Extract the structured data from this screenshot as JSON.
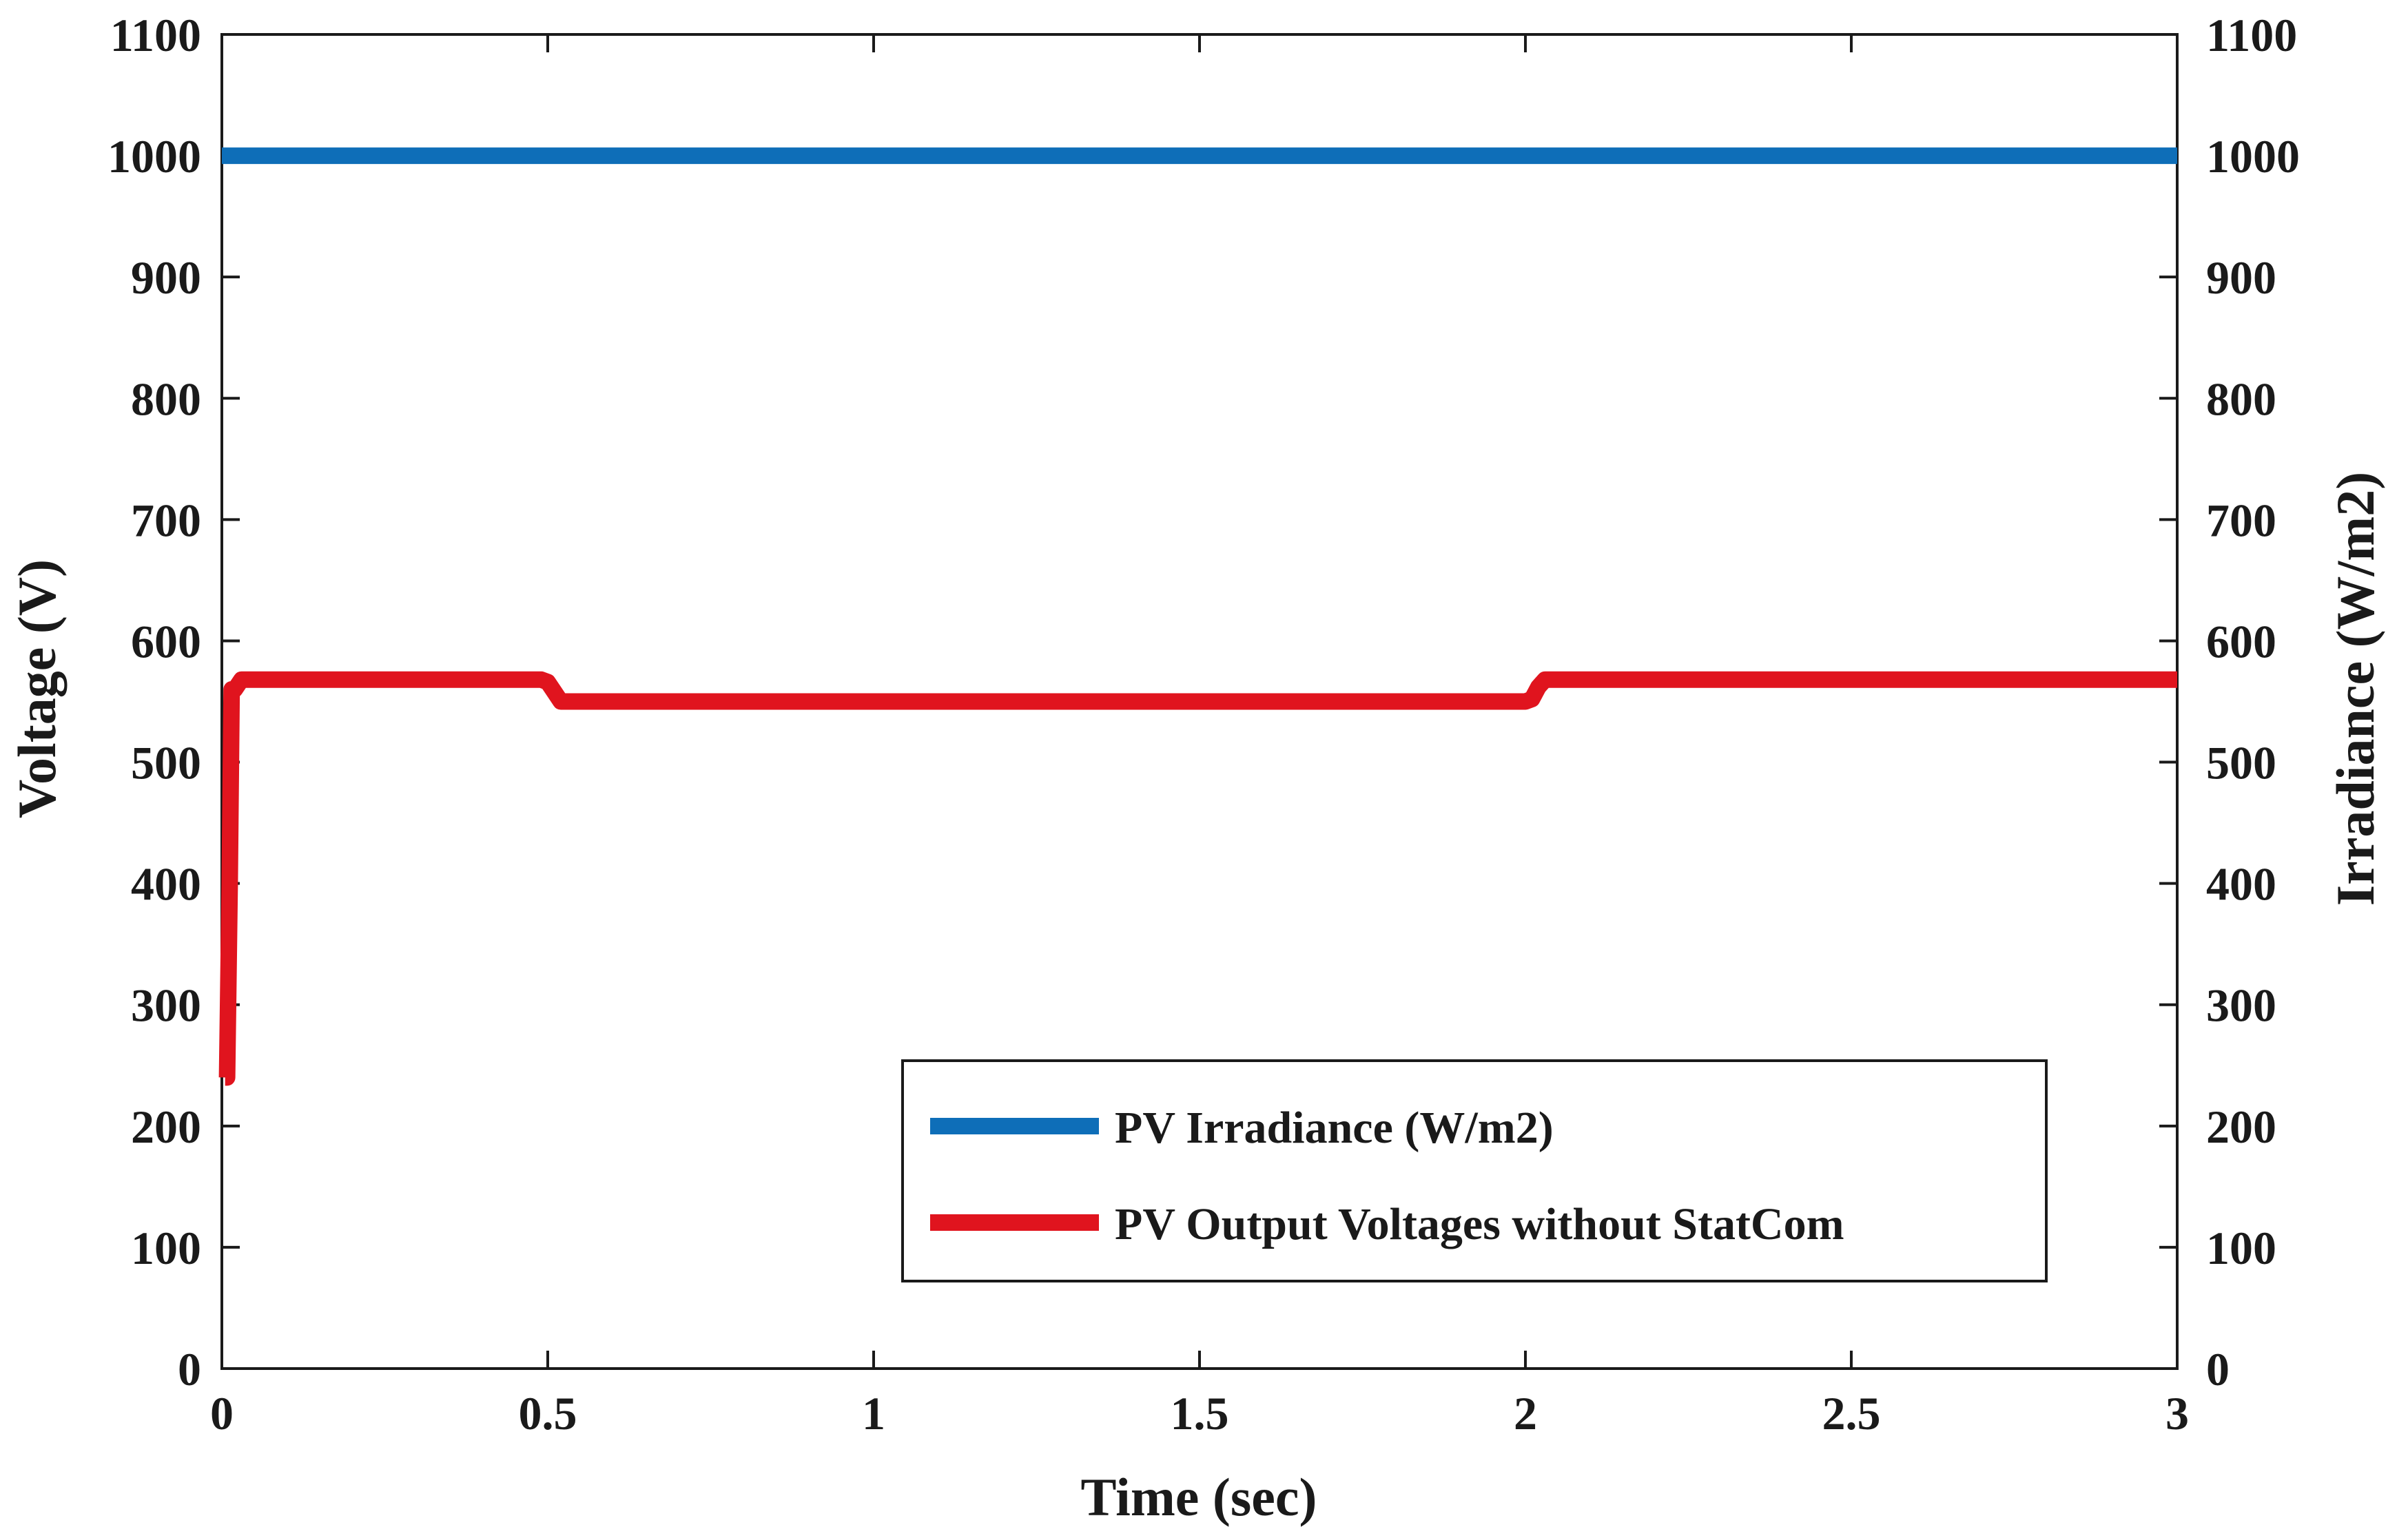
{
  "chart_data": {
    "type": "line",
    "title": "",
    "xlabel": "Time (sec)",
    "ylabel": "Voltage (V)",
    "y2label": "Irradiance (W/m2)",
    "xlim": [
      0,
      3
    ],
    "ylim": [
      0,
      1100
    ],
    "y2lim": [
      0,
      1100
    ],
    "x_ticks": [
      0,
      0.5,
      1,
      1.5,
      2,
      2.5,
      3
    ],
    "x_tick_labels": [
      "0",
      "0.5",
      "1",
      "1.5",
      "2",
      "2.5",
      "3"
    ],
    "y_ticks": [
      0,
      100,
      200,
      300,
      400,
      500,
      600,
      700,
      800,
      900,
      1000,
      1100
    ],
    "y_tick_labels": [
      "0",
      "100",
      "200",
      "300",
      "400",
      "500",
      "600",
      "700",
      "800",
      "900",
      "1000",
      "1100"
    ],
    "y2_tick_labels": [
      "0",
      "100",
      "200",
      "300",
      "400",
      "500",
      "600",
      "700",
      "800",
      "900",
      "1000",
      "1100"
    ],
    "grid": false,
    "legend_position": "lower-right",
    "series": [
      {
        "name": "PV Irradiance (W/m2)",
        "color": "#0e6eb8",
        "axis": "right",
        "x": [
          0,
          3
        ],
        "y": [
          1000,
          1000
        ]
      },
      {
        "name": "PV Output Voltages without StatCom",
        "color": "#e0141e",
        "axis": "left",
        "x": [
          0.005,
          0.008,
          0.012,
          0.015,
          0.02,
          0.03,
          0.49,
          0.5,
          0.51,
          0.52,
          2.0,
          2.01,
          2.02,
          2.03,
          3.0
        ],
        "y": [
          240,
          240,
          400,
          560,
          560,
          568,
          568,
          566,
          558,
          550,
          550,
          552,
          562,
          568,
          568
        ]
      }
    ]
  }
}
